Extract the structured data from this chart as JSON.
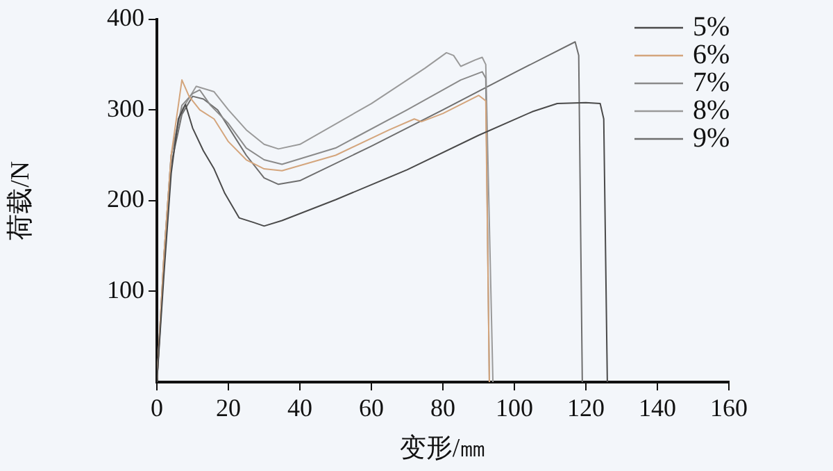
{
  "chart_data": {
    "type": "line",
    "xlabel": "变形/㎜",
    "ylabel": "荷载/N",
    "xlim": [
      0,
      160
    ],
    "xticks": [
      0,
      20,
      40,
      60,
      80,
      100,
      120,
      140,
      160
    ],
    "ylim": [
      0,
      400
    ],
    "yticks": [
      100,
      200,
      300,
      400
    ],
    "grid": false,
    "legend": "top right",
    "marker": "none",
    "line_style": "solid",
    "series": [
      {
        "name": "5%",
        "color": "#4a4a4a",
        "x": [
          0,
          2,
          4,
          6,
          8,
          10,
          13,
          16,
          19,
          23,
          27,
          30,
          35,
          50,
          70,
          90,
          105,
          112,
          120,
          124,
          125,
          126
        ],
        "values": [
          0,
          120,
          230,
          290,
          306,
          280,
          255,
          235,
          208,
          181,
          176,
          172,
          178,
          201,
          234,
          272,
          298,
          307,
          308,
          307,
          290,
          0
        ]
      },
      {
        "name": "6%",
        "color": "#d4a57c",
        "x": [
          0,
          2,
          4,
          6,
          7,
          9,
          12,
          16,
          20,
          25,
          30,
          35,
          50,
          65,
          72,
          74,
          80,
          90,
          92,
          93
        ],
        "values": [
          0,
          140,
          250,
          305,
          333,
          315,
          300,
          290,
          265,
          245,
          235,
          233,
          250,
          278,
          290,
          287,
          296,
          316,
          310,
          0
        ]
      },
      {
        "name": "7%",
        "color": "#8a8a8a",
        "x": [
          0,
          2,
          4,
          7,
          10,
          12,
          15,
          20,
          25,
          30,
          35,
          50,
          70,
          85,
          91,
          92,
          93
        ],
        "values": [
          0,
          140,
          250,
          305,
          318,
          322,
          305,
          285,
          258,
          245,
          240,
          258,
          300,
          333,
          342,
          335,
          0
        ]
      },
      {
        "name": "8%",
        "color": "#9a9a9a",
        "x": [
          0,
          2,
          4,
          7,
          11,
          16,
          20,
          25,
          30,
          34,
          40,
          60,
          75,
          81,
          83,
          85,
          89,
          91,
          92,
          94
        ],
        "values": [
          0,
          140,
          250,
          300,
          326,
          320,
          300,
          278,
          262,
          257,
          262,
          307,
          346,
          363,
          360,
          348,
          355,
          358,
          350,
          0
        ]
      },
      {
        "name": "9%",
        "color": "#6e6e6e",
        "x": [
          0,
          2,
          4,
          7,
          10,
          13,
          17,
          21,
          25,
          30,
          34,
          40,
          60,
          80,
          100,
          117,
          118,
          119
        ],
        "values": [
          0,
          130,
          240,
          295,
          315,
          312,
          300,
          275,
          250,
          225,
          218,
          222,
          260,
          300,
          341,
          375,
          360,
          0
        ]
      }
    ]
  }
}
